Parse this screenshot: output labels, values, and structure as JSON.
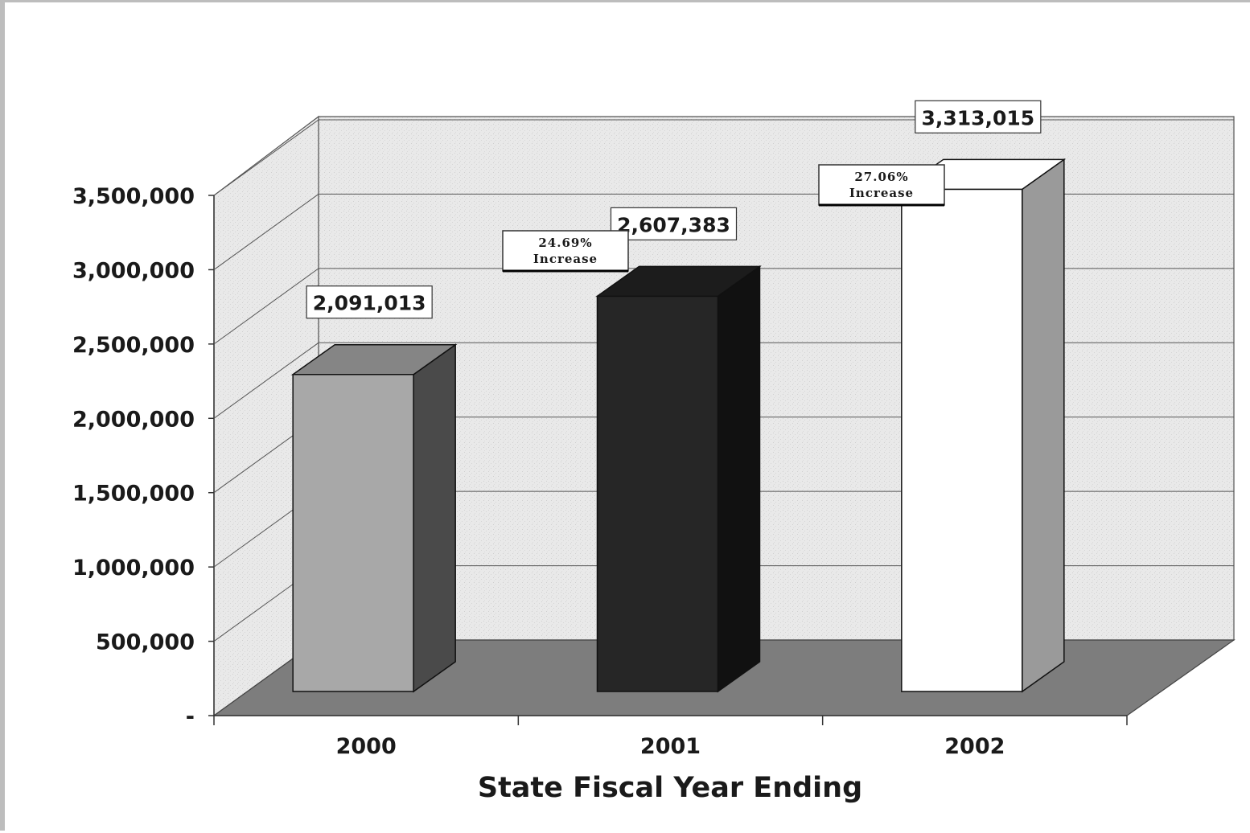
{
  "chart_data": {
    "type": "bar",
    "categories": [
      "2000",
      "2001",
      "2002"
    ],
    "values": [
      2091013,
      2607383,
      3313015
    ],
    "data_labels": [
      "2,091,013",
      "2,607,383",
      "3,313,015"
    ],
    "title": "",
    "xlabel": "State Fiscal Year Ending",
    "ylabel": "",
    "ylim": [
      0,
      3500000
    ],
    "yticks": [
      0,
      500000,
      1000000,
      1500000,
      2000000,
      2500000,
      3000000,
      3500000
    ],
    "ytick_labels": [
      "-",
      "500,000",
      "1,000,000",
      "1,500,000",
      "2,000,000",
      "2,500,000",
      "3,000,000",
      "3,500,000"
    ],
    "grid": true,
    "bar_colors": [
      "#a8a8a8",
      "#262626",
      "#ffffff"
    ],
    "annotations": [
      {
        "between": [
          "2000",
          "2001"
        ],
        "lines": [
          "24.69%",
          "Increase"
        ]
      },
      {
        "between": [
          "2001",
          "2002"
        ],
        "lines": [
          "27.06%",
          "Increase"
        ]
      }
    ]
  }
}
